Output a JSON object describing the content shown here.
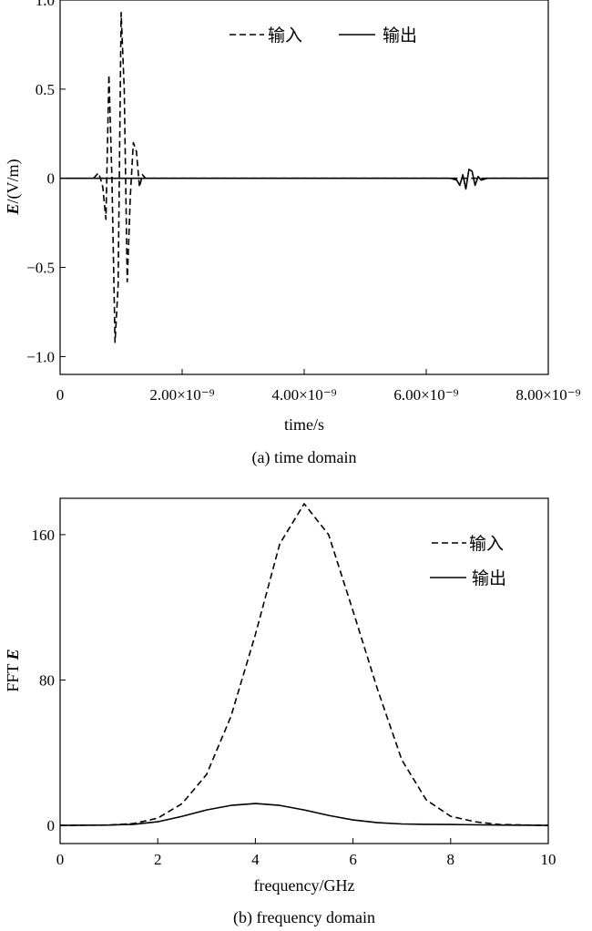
{
  "chart_data": [
    {
      "type": "line",
      "caption": "(a) time domain",
      "xlabel": "time/s",
      "ylabel_bold": "E",
      "ylabel_rest": "/(V/m)",
      "xlim": [
        0,
        8e-09
      ],
      "ylim": [
        -1.1,
        1.0
      ],
      "xticks": [
        {
          "value": 0,
          "label": "0"
        },
        {
          "value": 2e-09,
          "label": "2.00×10⁻⁹"
        },
        {
          "value": 4e-09,
          "label": "4.00×10⁻⁹"
        },
        {
          "value": 6e-09,
          "label": "6.00×10⁻⁹"
        },
        {
          "value": 8e-09,
          "label": "8.00×10⁻⁹"
        }
      ],
      "yticks": [
        {
          "value": 1.0,
          "label": "1.0"
        },
        {
          "value": 0.5,
          "label": "0.5"
        },
        {
          "value": 0,
          "label": "0"
        },
        {
          "value": -0.5,
          "label": "−0.5"
        },
        {
          "value": -1.0,
          "label": "−1.0"
        }
      ],
      "legend_position": "top",
      "series": [
        {
          "name": "输入",
          "style": "dashed",
          "x": [
            5.5e-10,
            6e-10,
            6.3e-10,
            6.6e-10,
            7e-10,
            7.5e-10,
            8e-10,
            8.5e-10,
            9e-10,
            9.5e-10,
            1e-09,
            1.05e-09,
            1.1e-09,
            1.15e-09,
            1.2e-09,
            1.25e-09,
            1.3e-09,
            1.35e-09,
            1.4e-09,
            1.6e-09,
            8e-09
          ],
          "y": [
            0,
            0.02,
            0.03,
            0,
            -0.05,
            -0.23,
            0.58,
            0,
            -0.92,
            -0.6,
            0.93,
            0.5,
            -0.58,
            -0.1,
            0.2,
            0.15,
            -0.05,
            0.02,
            0,
            0,
            0
          ]
        },
        {
          "name": "输出",
          "style": "solid",
          "x": [
            0,
            6.4e-09,
            6.5e-09,
            6.55e-09,
            6.6e-09,
            6.65e-09,
            6.7e-09,
            6.75e-09,
            6.8e-09,
            6.85e-09,
            6.9e-09,
            7e-09,
            8e-09
          ],
          "y": [
            0,
            0,
            -0.01,
            -0.04,
            0.02,
            -0.06,
            0.05,
            0.04,
            -0.04,
            0.01,
            -0.01,
            0,
            0
          ]
        }
      ]
    },
    {
      "type": "line",
      "caption": "(b) frequency domain",
      "xlabel": "frequency/GHz",
      "ylabel_rest": "FFT ",
      "ylabel_bold": "E",
      "xlim": [
        0,
        10
      ],
      "ylim": [
        -10,
        180
      ],
      "xticks": [
        {
          "value": 0,
          "label": "0"
        },
        {
          "value": 2,
          "label": "2"
        },
        {
          "value": 4,
          "label": "4"
        },
        {
          "value": 6,
          "label": "6"
        },
        {
          "value": 8,
          "label": "8"
        },
        {
          "value": 10,
          "label": "10"
        }
      ],
      "yticks": [
        {
          "value": 160,
          "label": "160"
        },
        {
          "value": 80,
          "label": "80"
        },
        {
          "value": 0,
          "label": "0"
        }
      ],
      "legend_position": "top-right",
      "series": [
        {
          "name": "输入",
          "style": "dashed",
          "x": [
            0,
            1,
            1.5,
            2,
            2.5,
            3,
            3.5,
            4,
            4.5,
            5,
            5.5,
            6,
            6.5,
            7,
            7.5,
            8,
            8.5,
            9,
            10
          ],
          "y": [
            0,
            0.2,
            1,
            4,
            12,
            28,
            60,
            105,
            155,
            177,
            160,
            118,
            75,
            36,
            14,
            5,
            2,
            0.5,
            0
          ]
        },
        {
          "name": "输出",
          "style": "solid",
          "x": [
            0,
            1,
            1.5,
            2,
            2.5,
            3,
            3.5,
            4,
            4.5,
            5,
            5.5,
            6,
            6.5,
            7,
            7.5,
            8,
            9,
            10
          ],
          "y": [
            0,
            0.2,
            0.6,
            2,
            5,
            8.5,
            11,
            12,
            11,
            8.5,
            5.5,
            3,
            1.5,
            0.8,
            0.6,
            0.5,
            0.2,
            0
          ]
        }
      ]
    }
  ]
}
